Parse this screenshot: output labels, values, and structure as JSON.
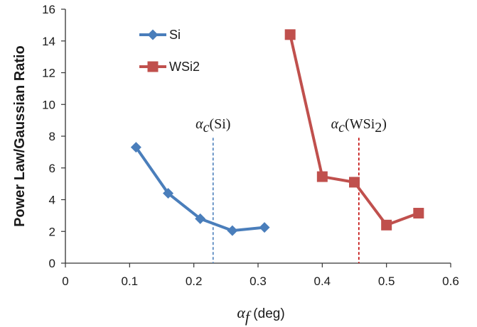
{
  "chart_data": {
    "type": "line",
    "title": "",
    "ylabel": "Power Law/Gaussian Ratio",
    "xlabel": {
      "symbol": "α",
      "subscript": "f",
      "unit": " (deg)"
    },
    "xlim": [
      0,
      0.6
    ],
    "ylim": [
      0,
      16
    ],
    "x_ticks": [
      "0",
      "0.1",
      "0.2",
      "0.3",
      "0.4",
      "0.5",
      "0.6"
    ],
    "y_ticks": [
      "0",
      "2",
      "4",
      "6",
      "8",
      "10",
      "12",
      "14",
      "16"
    ],
    "grid": false,
    "legend_position": "top-left",
    "series": [
      {
        "name": "Si",
        "color": "#4a7ebb",
        "marker": "diamond",
        "x": [
          0.11,
          0.16,
          0.21,
          0.26,
          0.31
        ],
        "y": [
          7.3,
          4.4,
          2.8,
          2.05,
          2.25
        ]
      },
      {
        "name": "WSi2",
        "color": "#c0504d",
        "marker": "square",
        "x": [
          0.35,
          0.4,
          0.45,
          0.5,
          0.55
        ],
        "y": [
          14.4,
          5.45,
          5.1,
          2.4,
          3.15
        ]
      }
    ],
    "annotations": [
      {
        "kind": "vline",
        "x": 0.23,
        "color": "#4a7ebb",
        "y_from": 0,
        "y_to": 7.9,
        "label_symbol": "α",
        "label_sub": "c",
        "label_rest": "(Si)"
      },
      {
        "kind": "vline",
        "x": 0.457,
        "color": "#c00000",
        "y_from": 0,
        "y_to": 7.9,
        "label_symbol": "α",
        "label_sub": "c",
        "label_rest": "(WSi",
        "label_rest_sub": "2",
        "label_close": ")"
      }
    ]
  }
}
